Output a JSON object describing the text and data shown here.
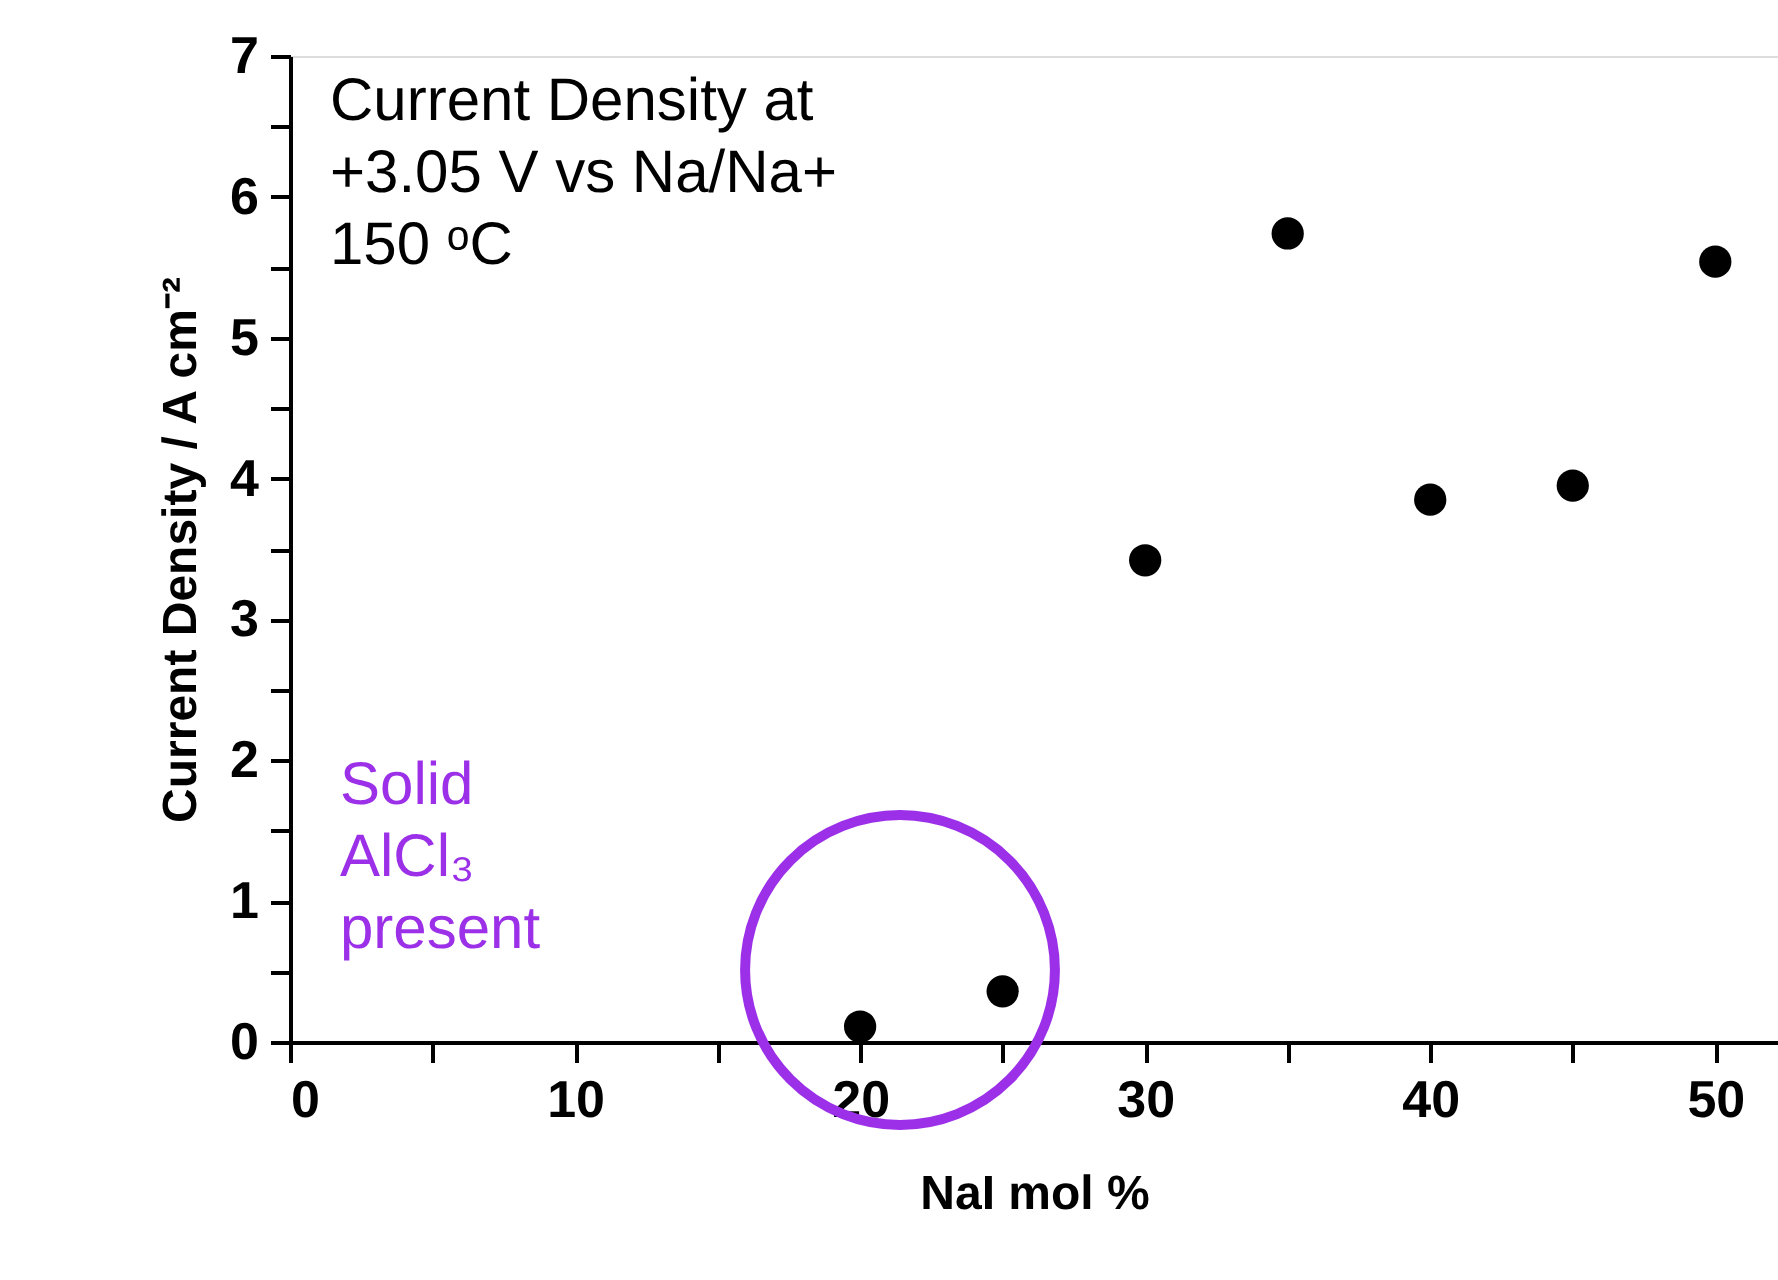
{
  "chart_data": {
    "type": "scatter",
    "xlabel": "NaI mol %",
    "ylabel": "Current Density / A cm⁻²",
    "x": [
      20,
      25,
      30,
      35,
      40,
      45,
      50
    ],
    "series": [
      {
        "color": "#000000",
        "values": [
          0.11,
          0.36,
          3.42,
          5.74,
          3.85,
          3.95,
          5.54
        ]
      }
    ],
    "marker": "circle",
    "xlim": [
      0,
      52.2
    ],
    "ylim": [
      0,
      7
    ],
    "xticks": [
      0,
      {
        "value": 5,
        "label": null
      },
      10,
      {
        "value": 15,
        "label": null
      },
      20,
      {
        "value": 25,
        "label": null
      },
      30,
      {
        "value": 35,
        "label": null
      },
      40,
      {
        "value": 45,
        "label": null
      },
      50
    ],
    "yticks": [
      0,
      {
        "value": 0.5,
        "label": null
      },
      1,
      {
        "value": 1.5,
        "label": null
      },
      2,
      {
        "value": 2.5,
        "label": null
      },
      3,
      {
        "value": 3.5,
        "label": null
      },
      4,
      {
        "value": 4.5,
        "label": null
      },
      5,
      {
        "value": 5.5,
        "label": null
      },
      6,
      {
        "value": 6.5,
        "label": null
      },
      7
    ],
    "grid": false,
    "legend": false,
    "annotations": [
      "Current Density at\n+3.05 V vs Na/Na+\n150 ᵒC",
      "Solid\nAlCl₃\npresent"
    ]
  }
}
